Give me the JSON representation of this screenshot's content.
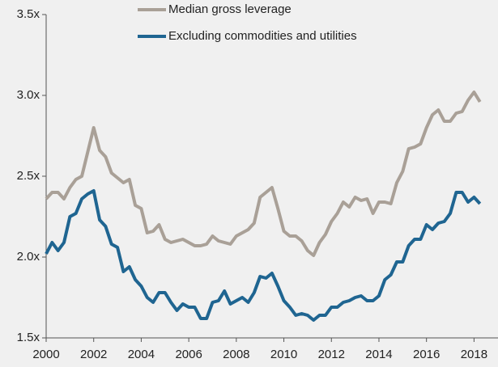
{
  "chart_data": {
    "type": "line",
    "x": [
      2000,
      2000.25,
      2000.5,
      2000.75,
      2001,
      2001.25,
      2001.5,
      2001.75,
      2002,
      2002.25,
      2002.5,
      2002.75,
      2003,
      2003.25,
      2003.5,
      2003.75,
      2004,
      2004.25,
      2004.5,
      2004.75,
      2005,
      2005.25,
      2005.5,
      2005.75,
      2006,
      2006.25,
      2006.5,
      2006.75,
      2007,
      2007.25,
      2007.5,
      2007.75,
      2008,
      2008.25,
      2008.5,
      2008.75,
      2009,
      2009.25,
      2009.5,
      2009.75,
      2010,
      2010.25,
      2010.5,
      2010.75,
      2011,
      2011.25,
      2011.5,
      2011.75,
      2012,
      2012.25,
      2012.5,
      2012.75,
      2013,
      2013.25,
      2013.5,
      2013.75,
      2014,
      2014.25,
      2014.5,
      2014.75,
      2015,
      2015.25,
      2015.5,
      2015.75,
      2016,
      2016.25,
      2016.5,
      2016.75,
      2017,
      2017.25,
      2017.5,
      2017.75,
      2018,
      2018.25
    ],
    "series": [
      {
        "name": "Median gross leverage",
        "color": "#a9a097",
        "values": [
          2.36,
          2.4,
          2.4,
          2.36,
          2.43,
          2.48,
          2.5,
          2.65,
          2.8,
          2.66,
          2.62,
          2.52,
          2.49,
          2.46,
          2.48,
          2.32,
          2.3,
          2.15,
          2.16,
          2.2,
          2.11,
          2.09,
          2.1,
          2.11,
          2.09,
          2.07,
          2.07,
          2.08,
          2.13,
          2.1,
          2.09,
          2.08,
          2.13,
          2.15,
          2.17,
          2.21,
          2.37,
          2.4,
          2.43,
          2.3,
          2.16,
          2.13,
          2.13,
          2.1,
          2.04,
          2.01,
          2.09,
          2.14,
          2.22,
          2.27,
          2.34,
          2.31,
          2.37,
          2.35,
          2.36,
          2.27,
          2.34,
          2.34,
          2.33,
          2.46,
          2.53,
          2.67,
          2.68,
          2.7,
          2.8,
          2.88,
          2.91,
          2.84,
          2.84,
          2.89,
          2.9,
          2.97,
          3.02,
          2.96
        ]
      },
      {
        "name": "Excluding commodities and utilities",
        "color": "#1f6591",
        "values": [
          2.02,
          2.09,
          2.04,
          2.09,
          2.25,
          2.27,
          2.36,
          2.39,
          2.41,
          2.23,
          2.19,
          2.08,
          2.06,
          1.91,
          1.94,
          1.86,
          1.82,
          1.75,
          1.72,
          1.78,
          1.78,
          1.72,
          1.67,
          1.71,
          1.69,
          1.69,
          1.62,
          1.62,
          1.72,
          1.73,
          1.79,
          1.71,
          1.73,
          1.75,
          1.72,
          1.78,
          1.88,
          1.87,
          1.9,
          1.82,
          1.73,
          1.69,
          1.64,
          1.65,
          1.64,
          1.61,
          1.64,
          1.64,
          1.69,
          1.69,
          1.72,
          1.73,
          1.75,
          1.76,
          1.73,
          1.73,
          1.76,
          1.86,
          1.89,
          1.97,
          1.97,
          2.07,
          2.11,
          2.11,
          2.2,
          2.17,
          2.21,
          2.22,
          2.27,
          2.4,
          2.4,
          2.34,
          2.37,
          2.33
        ]
      }
    ],
    "xlim": [
      2000,
      2018.6
    ],
    "xticks": [
      2000,
      2002,
      2004,
      2006,
      2008,
      2010,
      2012,
      2014,
      2016,
      2018
    ],
    "ylim": [
      1.5,
      3.5
    ],
    "yticks": [
      {
        "value": 1.5,
        "label": "1.5x"
      },
      {
        "value": 2.0,
        "label": "2.0x"
      },
      {
        "value": 2.5,
        "label": "2.5x"
      },
      {
        "value": 3.0,
        "label": "3.0x"
      },
      {
        "value": 3.5,
        "label": "3.5x"
      }
    ],
    "grid": false
  }
}
